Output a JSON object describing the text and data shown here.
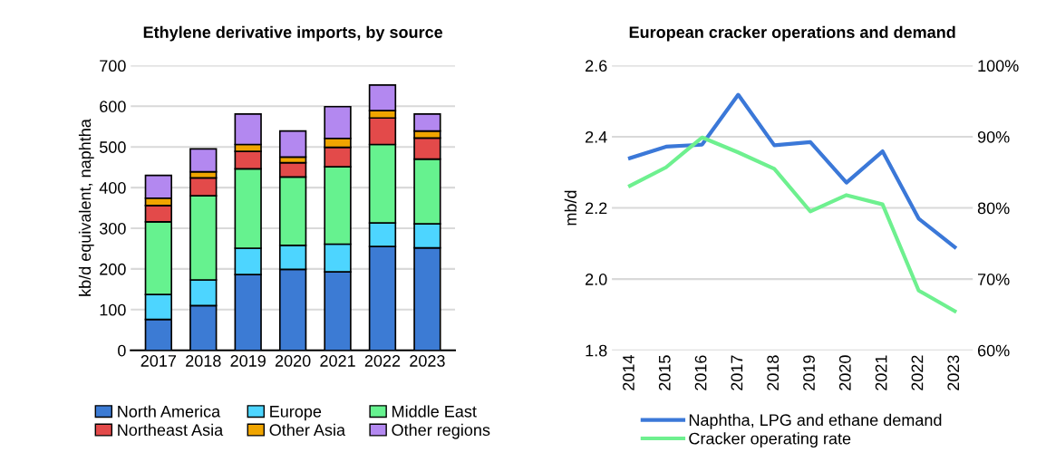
{
  "chart_data": [
    {
      "type": "bar",
      "stacked": true,
      "title": "Ethylene derivative imports, by source",
      "ylabel": "kb/d equivalent, naphtha",
      "categories": [
        "2017",
        "2018",
        "2019",
        "2020",
        "2021",
        "2022",
        "2023"
      ],
      "series": [
        {
          "name": "North America",
          "color": "#3c7bd4",
          "values": [
            76,
            110,
            186,
            199,
            193,
            255,
            252
          ]
        },
        {
          "name": "Europe",
          "color": "#4dd5ff",
          "values": [
            61,
            63,
            65,
            59,
            68,
            58,
            59
          ]
        },
        {
          "name": "Middle East",
          "color": "#66f28f",
          "values": [
            179,
            207,
            195,
            168,
            190,
            193,
            159
          ]
        },
        {
          "name": "Northeast Asia",
          "color": "#e34a4a",
          "values": [
            40,
            44,
            43,
            35,
            48,
            65,
            52
          ]
        },
        {
          "name": "Other Asia",
          "color": "#f0a500",
          "values": [
            18,
            15,
            17,
            14,
            22,
            18,
            17
          ]
        },
        {
          "name": "Other regions",
          "color": "#b388f0",
          "values": [
            56,
            56,
            75,
            64,
            78,
            63,
            42
          ]
        }
      ],
      "ylim": [
        0,
        700
      ],
      "yticks": [
        0,
        100,
        200,
        300,
        400,
        500,
        600,
        700
      ],
      "grid": "y",
      "legend": "bottom"
    },
    {
      "type": "line",
      "title": "European cracker operations and demand",
      "ylabel": "mb/d",
      "categories": [
        "2014",
        "2015",
        "2016",
        "2017",
        "2018",
        "2019",
        "2020",
        "2021",
        "2022",
        "2023"
      ],
      "series": [
        {
          "name": "Naphtha, LPG and ethane demand",
          "color": "#3b78d8",
          "values": [
            2.34,
            2.372,
            2.378,
            2.518,
            2.376,
            2.385,
            2.271,
            2.359,
            2.17,
            2.09
          ]
        },
        {
          "name": "Cracker operating rate",
          "color": "#6ef08f",
          "axis": "y2",
          "values": [
            83.1,
            85.7,
            89.9,
            87.8,
            85.5,
            79.5,
            81.8,
            80.5,
            68.4,
            65.5
          ]
        }
      ],
      "ylim": [
        1.8,
        2.6
      ],
      "yticks": [
        1.8,
        {
          "value": 2.0,
          "label": "2.0"
        },
        2.2,
        2.4,
        2.6
      ],
      "y2lim": [
        60,
        100
      ],
      "y2ticks": [
        {
          "value": 60,
          "label": "60%"
        },
        {
          "value": 70,
          "label": "70%"
        },
        {
          "value": 80,
          "label": "80%"
        },
        {
          "value": 90,
          "label": "90%"
        },
        {
          "value": 100,
          "label": "100%"
        }
      ],
      "grid": "y",
      "legend": "bottom",
      "marker": "none",
      "line_style": "solid"
    }
  ]
}
